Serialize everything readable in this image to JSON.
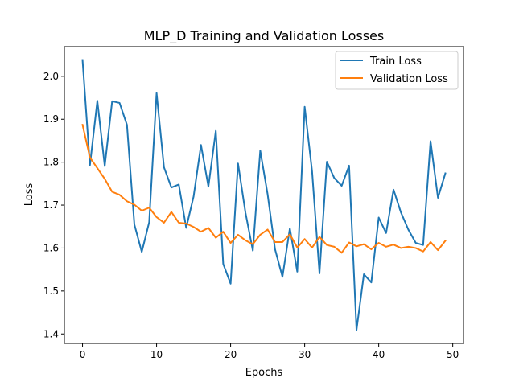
{
  "chart_data": {
    "type": "line",
    "title": "MLP_D Training and Validation Losses",
    "xlabel": "Epochs",
    "ylabel": "Loss",
    "xlim": [
      -2.45,
      51.45
    ],
    "ylim": [
      1.378,
      2.069
    ],
    "xticks": [
      0,
      10,
      20,
      30,
      40,
      50
    ],
    "yticks": [
      1.4,
      1.5,
      1.6,
      1.7,
      1.8,
      1.9,
      2.0
    ],
    "xtick_labels": [
      "0",
      "10",
      "20",
      "30",
      "40",
      "50"
    ],
    "ytick_labels": [
      "1.4",
      "1.5",
      "1.6",
      "1.7",
      "1.8",
      "1.9",
      "2.0"
    ],
    "grid": false,
    "legend_position": "top-right",
    "x": [
      0,
      1,
      2,
      3,
      4,
      5,
      6,
      7,
      8,
      9,
      10,
      11,
      12,
      13,
      14,
      15,
      16,
      17,
      18,
      19,
      20,
      21,
      22,
      23,
      24,
      25,
      26,
      27,
      28,
      29,
      30,
      31,
      32,
      33,
      34,
      35,
      36,
      37,
      38,
      39,
      40,
      41,
      42,
      43,
      44,
      45,
      46,
      47,
      48,
      49
    ],
    "series": [
      {
        "name": "Train Loss",
        "color": "#1f77b4",
        "values": [
          2.038,
          1.793,
          1.943,
          1.791,
          1.942,
          1.938,
          1.887,
          1.655,
          1.591,
          1.66,
          1.961,
          1.788,
          1.741,
          1.748,
          1.647,
          1.72,
          1.84,
          1.743,
          1.873,
          1.563,
          1.517,
          1.797,
          1.683,
          1.594,
          1.827,
          1.725,
          1.597,
          1.533,
          1.646,
          1.545,
          1.929,
          1.779,
          1.541,
          1.801,
          1.763,
          1.745,
          1.792,
          1.409,
          1.539,
          1.52,
          1.671,
          1.635,
          1.736,
          1.683,
          1.643,
          1.612,
          1.607,
          1.849,
          1.717,
          1.774
        ]
      },
      {
        "name": "Validation Loss",
        "color": "#ff7f0e",
        "values": [
          1.887,
          1.811,
          1.786,
          1.761,
          1.731,
          1.724,
          1.709,
          1.701,
          1.687,
          1.694,
          1.672,
          1.659,
          1.684,
          1.659,
          1.657,
          1.649,
          1.638,
          1.647,
          1.624,
          1.638,
          1.612,
          1.631,
          1.618,
          1.609,
          1.631,
          1.643,
          1.614,
          1.614,
          1.632,
          1.601,
          1.621,
          1.601,
          1.626,
          1.607,
          1.603,
          1.589,
          1.613,
          1.604,
          1.609,
          1.597,
          1.612,
          1.603,
          1.608,
          1.6,
          1.603,
          1.6,
          1.592,
          1.614,
          1.595,
          1.617
        ]
      }
    ]
  }
}
